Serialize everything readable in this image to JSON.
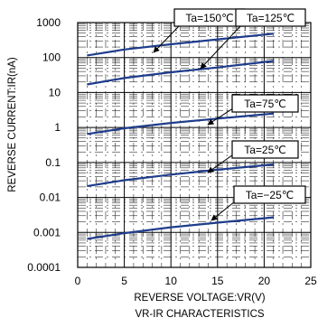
{
  "chart_data": {
    "type": "line",
    "xlabel": "REVERSE VOLTAGE:VR(V)",
    "ylabel": "REVERSE CURRENT:IR(nA)",
    "caption": "VR-IR CHARACTERISTICS",
    "x_scale": "linear",
    "y_scale": "log",
    "xlim": [
      0,
      25
    ],
    "ylim": [
      0.0001,
      1000
    ],
    "x_ticks": [
      "0",
      "5",
      "10",
      "15",
      "20",
      "25"
    ],
    "y_ticks": [
      "0.0001",
      "0.001",
      "0.01",
      "0.1",
      "1",
      "10",
      "100",
      "1000"
    ],
    "grid": true,
    "line_color": "#1f3d8c",
    "series": [
      {
        "name": "Ta=150℃",
        "x": [
          1,
          5,
          10,
          15,
          21
        ],
        "y": [
          115,
          170,
          240,
          330,
          480
        ]
      },
      {
        "name": "Ta=125℃",
        "x": [
          1,
          5,
          10,
          15,
          21
        ],
        "y": [
          17,
          26,
          38,
          52,
          80
        ]
      },
      {
        "name": "Ta=75℃",
        "x": [
          1,
          5,
          10,
          15,
          21
        ],
        "y": [
          0.65,
          0.95,
          1.35,
          1.8,
          2.5
        ]
      },
      {
        "name": "Ta=25℃",
        "x": [
          1,
          5,
          10,
          15,
          21
        ],
        "y": [
          0.021,
          0.031,
          0.045,
          0.062,
          0.088
        ]
      },
      {
        "name": "Ta=−25℃",
        "x": [
          1,
          5,
          10,
          15,
          21
        ],
        "y": [
          0.00065,
          0.00095,
          0.0014,
          0.0019,
          0.0027
        ]
      }
    ]
  }
}
